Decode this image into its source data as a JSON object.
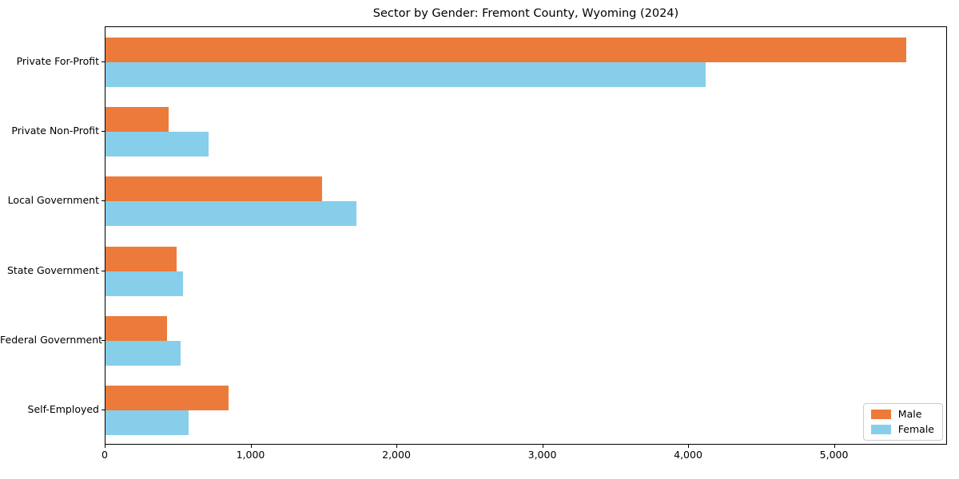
{
  "title": "Sector by Gender: Fremont County, Wyoming (2024)",
  "chart_data": {
    "type": "bar",
    "orientation": "horizontal",
    "title": "Sector by Gender: Fremont County, Wyoming (2024)",
    "xlabel": "",
    "ylabel": "",
    "categories": [
      "Private For-Profit",
      "Private Non-Profit",
      "Local Government",
      "State Government",
      "Federal Government",
      "Self-Employed"
    ],
    "series": [
      {
        "name": "Male",
        "color": "#ec7b3b",
        "values": [
          5500,
          435,
          1485,
          490,
          420,
          845
        ]
      },
      {
        "name": "Female",
        "color": "#87ceeb",
        "values": [
          4120,
          710,
          1725,
          535,
          515,
          570
        ]
      }
    ],
    "xlim": [
      0,
      5775
    ],
    "xticks": [
      0,
      1000,
      2000,
      3000,
      4000,
      5000
    ],
    "xtick_labels": [
      "0",
      "1,000",
      "2,000",
      "3,000",
      "4,000",
      "5,000"
    ],
    "grid": false,
    "legend": {
      "position": "lower right",
      "entries": [
        "Male",
        "Female"
      ]
    },
    "colors": {
      "spine": "#000000",
      "background": "#ffffff",
      "legend_border": "#cccccc"
    }
  }
}
